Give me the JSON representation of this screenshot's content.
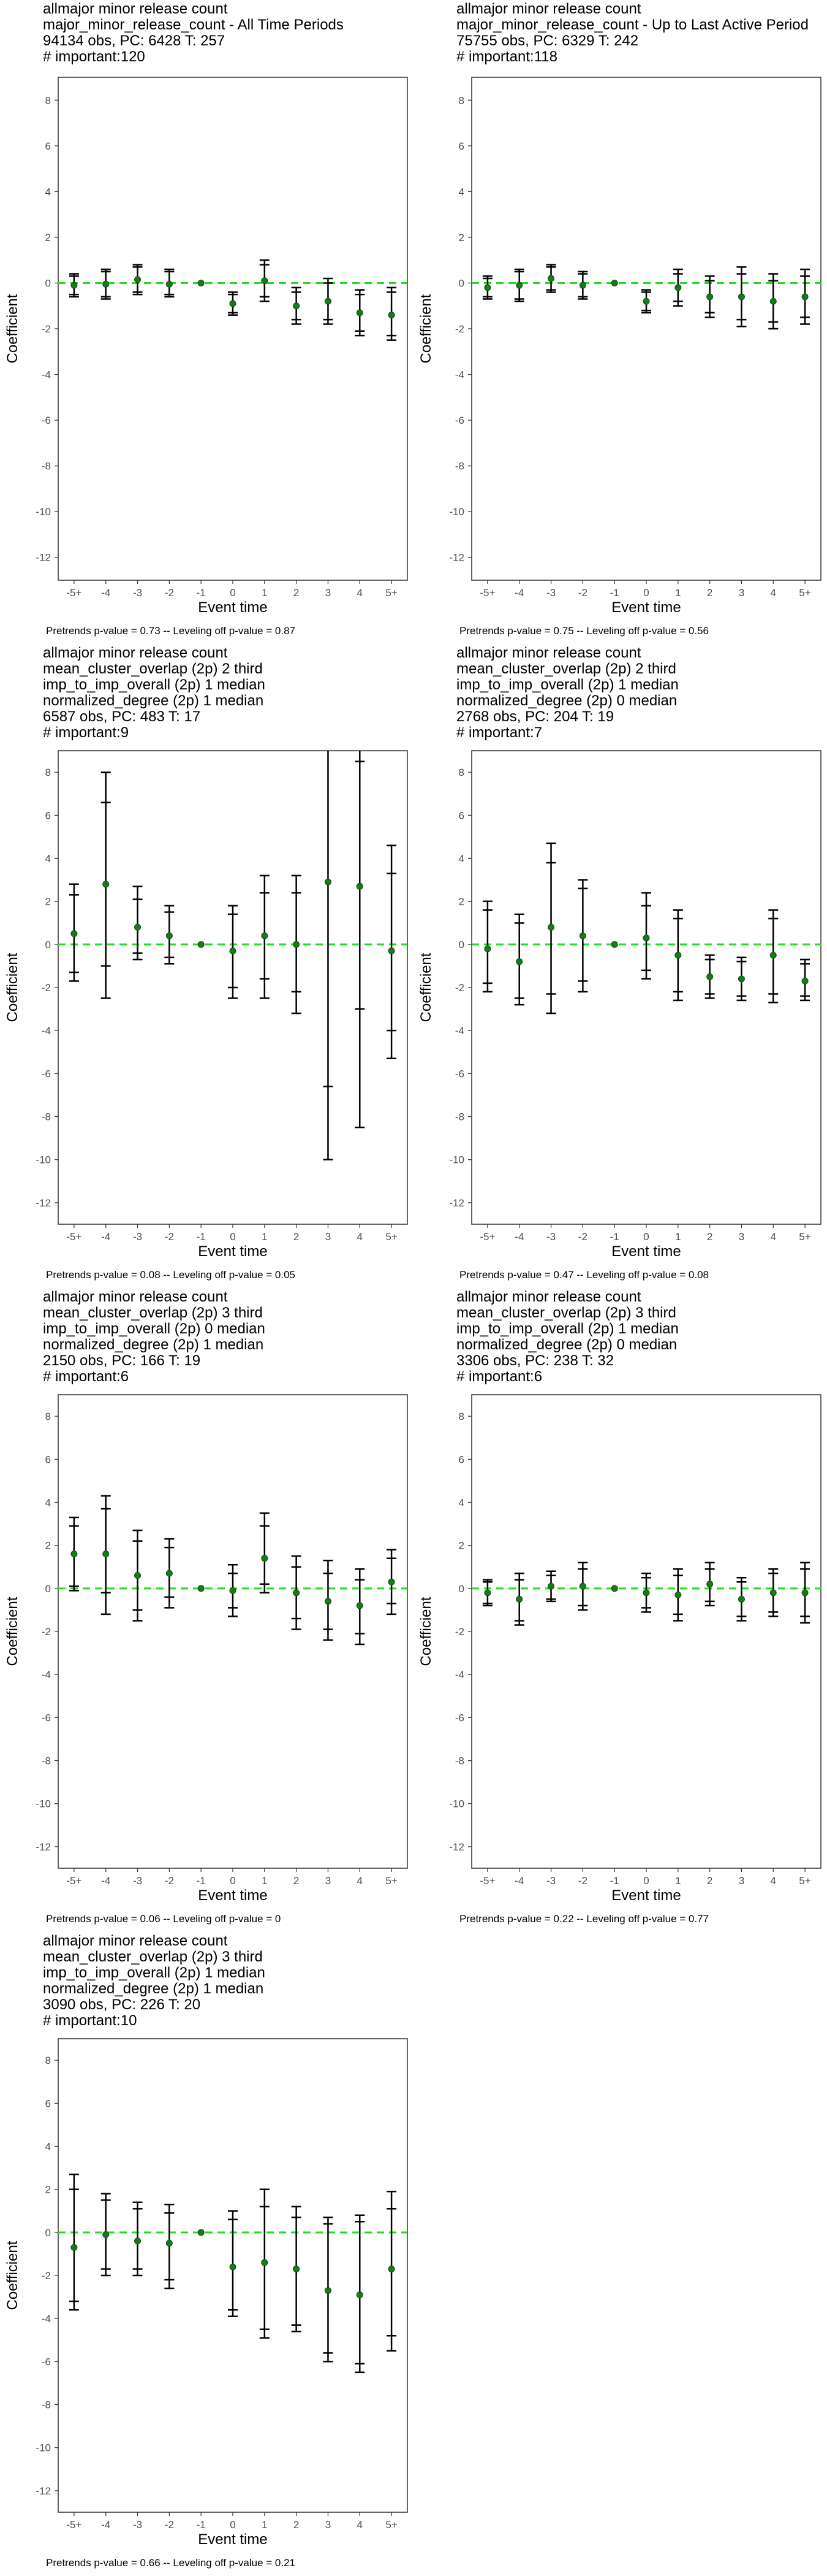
{
  "axis": {
    "xlabel": "Event time",
    "ylabel": "Coefficient",
    "ylim": [
      -13,
      9
    ],
    "yticks": [
      8,
      6,
      4,
      2,
      0,
      -2,
      -4,
      -6,
      -8,
      -10,
      -12
    ],
    "categories": [
      "-5+",
      "-4",
      "-3",
      "-2",
      "-1",
      "0",
      "1",
      "2",
      "3",
      "4",
      "5+"
    ],
    "grid": false,
    "reference_line": {
      "y": 0,
      "color": "#22dd22",
      "style": "dashed"
    }
  },
  "colors": {
    "point": "#1a7a1a",
    "bar": "#000000",
    "ref_line": "#22dd22",
    "panel_border": "#333333"
  },
  "chart_data": [
    {
      "type": "scatter",
      "title_lines": [
        " allmajor minor release count",
        "major_minor_release_count - All Time Periods",
        "94134 obs, PC: 6428 T: 257",
        "# important:120"
      ],
      "footer": "Pretrends p-value = 0.73 -- Leveling off p-value = 0.87",
      "values": [
        -0.1,
        -0.05,
        0.15,
        -0.05,
        0,
        -0.9,
        0.1,
        -1.0,
        -0.8,
        -1.3,
        -1.4
      ],
      "ci95": [
        [
          -0.6,
          0.4
        ],
        [
          -0.7,
          0.6
        ],
        [
          -0.5,
          0.8
        ],
        [
          -0.6,
          0.6
        ],
        [
          0,
          0
        ],
        [
          -1.4,
          -0.4
        ],
        [
          -0.8,
          1.0
        ],
        [
          -1.8,
          -0.2
        ],
        [
          -1.8,
          0.2
        ],
        [
          -2.3,
          -0.3
        ],
        [
          -2.5,
          -0.2
        ]
      ],
      "ci90": [
        [
          -0.5,
          0.3
        ],
        [
          -0.6,
          0.5
        ],
        [
          -0.4,
          0.7
        ],
        [
          -0.5,
          0.5
        ],
        [
          0,
          0
        ],
        [
          -1.3,
          -0.5
        ],
        [
          -0.6,
          0.8
        ],
        [
          -1.6,
          -0.4
        ],
        [
          -1.6,
          0.0
        ],
        [
          -2.1,
          -0.5
        ],
        [
          -2.3,
          -0.4
        ]
      ]
    },
    {
      "type": "scatter",
      "title_lines": [
        " allmajor minor release count",
        "major_minor_release_count - Up to Last Active Period",
        "75755 obs, PC: 6329 T: 242",
        "# important:118"
      ],
      "footer": "Pretrends p-value = 0.75 -- Leveling off p-value = 0.56",
      "values": [
        -0.2,
        -0.1,
        0.2,
        -0.1,
        0,
        -0.8,
        -0.2,
        -0.6,
        -0.6,
        -0.8,
        -0.6
      ],
      "ci95": [
        [
          -0.7,
          0.3
        ],
        [
          -0.8,
          0.6
        ],
        [
          -0.4,
          0.8
        ],
        [
          -0.7,
          0.5
        ],
        [
          0,
          0
        ],
        [
          -1.3,
          -0.3
        ],
        [
          -1.0,
          0.6
        ],
        [
          -1.5,
          0.3
        ],
        [
          -1.9,
          0.7
        ],
        [
          -2.0,
          0.4
        ],
        [
          -1.8,
          0.6
        ]
      ],
      "ci90": [
        [
          -0.6,
          0.2
        ],
        [
          -0.7,
          0.5
        ],
        [
          -0.3,
          0.7
        ],
        [
          -0.6,
          0.4
        ],
        [
          0,
          0
        ],
        [
          -1.2,
          -0.4
        ],
        [
          -0.8,
          0.4
        ],
        [
          -1.3,
          0.1
        ],
        [
          -1.6,
          0.4
        ],
        [
          -1.7,
          0.1
        ],
        [
          -1.5,
          0.3
        ]
      ]
    },
    {
      "type": "scatter",
      "title_lines": [
        " allmajor minor release count",
        "mean_cluster_overlap (2p) 2 third",
        "imp_to_imp_overall (2p) 1 median",
        "normalized_degree (2p) 1 median",
        "6587 obs, PC: 483 T: 17",
        "# important:9"
      ],
      "footer": "Pretrends p-value = 0.08 -- Leveling off p-value = 0.05",
      "values": [
        0.5,
        2.8,
        0.8,
        0.4,
        0,
        -0.3,
        0.4,
        0.0,
        2.9,
        2.7,
        -0.3
      ],
      "ci95": [
        [
          -1.7,
          2.8
        ],
        [
          -2.5,
          8.0
        ],
        [
          -0.7,
          2.7
        ],
        [
          -0.9,
          1.8
        ],
        [
          0,
          0
        ],
        [
          -2.5,
          1.8
        ],
        [
          -2.5,
          3.2
        ],
        [
          -3.2,
          3.2
        ],
        [
          -10.0,
          12.0
        ],
        [
          -8.5,
          13.5
        ],
        [
          -5.3,
          4.6
        ]
      ],
      "ci90": [
        [
          -1.3,
          2.3
        ],
        [
          -1.0,
          6.6
        ],
        [
          -0.4,
          2.1
        ],
        [
          -0.6,
          1.5
        ],
        [
          0,
          0
        ],
        [
          -2.0,
          1.4
        ],
        [
          -1.6,
          2.4
        ],
        [
          -2.2,
          2.4
        ],
        [
          -6.6,
          12.0
        ],
        [
          -3.0,
          8.5
        ],
        [
          -4.0,
          3.3
        ]
      ]
    },
    {
      "type": "scatter",
      "title_lines": [
        " allmajor minor release count",
        "mean_cluster_overlap (2p) 2 third",
        "imp_to_imp_overall (2p) 1 median",
        "normalized_degree (2p) 0 median",
        "2768 obs, PC: 204 T: 19",
        "# important:7"
      ],
      "footer": "Pretrends p-value = 0.47 -- Leveling off p-value = 0.08",
      "values": [
        -0.2,
        -0.8,
        0.8,
        0.4,
        0,
        0.3,
        -0.5,
        -1.5,
        -1.6,
        -0.5,
        -1.7
      ],
      "ci95": [
        [
          -2.2,
          2.0
        ],
        [
          -2.8,
          1.4
        ],
        [
          -3.2,
          4.7
        ],
        [
          -2.2,
          3.0
        ],
        [
          0,
          0
        ],
        [
          -1.6,
          2.4
        ],
        [
          -2.6,
          1.6
        ],
        [
          -2.5,
          -0.5
        ],
        [
          -2.6,
          -0.6
        ],
        [
          -2.7,
          1.6
        ],
        [
          -2.6,
          -0.7
        ]
      ],
      "ci90": [
        [
          -1.8,
          1.6
        ],
        [
          -2.5,
          1.0
        ],
        [
          -2.3,
          3.8
        ],
        [
          -1.7,
          2.6
        ],
        [
          0,
          0
        ],
        [
          -1.2,
          1.8
        ],
        [
          -2.2,
          1.2
        ],
        [
          -2.3,
          -0.7
        ],
        [
          -2.4,
          -0.8
        ],
        [
          -2.3,
          1.2
        ],
        [
          -2.4,
          -0.9
        ]
      ]
    },
    {
      "type": "scatter",
      "title_lines": [
        " allmajor minor release count",
        "mean_cluster_overlap (2p) 3 third",
        "imp_to_imp_overall (2p) 0 median",
        "normalized_degree (2p) 1 median",
        "2150 obs, PC: 166 T: 19",
        "# important:6"
      ],
      "footer": "Pretrends p-value = 0.06 -- Leveling off p-value = 0",
      "values": [
        1.6,
        1.6,
        0.6,
        0.7,
        0,
        -0.1,
        1.4,
        -0.2,
        -0.6,
        -0.8,
        0.3
      ],
      "ci95": [
        [
          -0.1,
          3.3
        ],
        [
          -1.2,
          4.3
        ],
        [
          -1.5,
          2.7
        ],
        [
          -0.9,
          2.3
        ],
        [
          0,
          0
        ],
        [
          -1.3,
          1.1
        ],
        [
          -0.2,
          3.5
        ],
        [
          -1.9,
          1.5
        ],
        [
          -2.4,
          1.3
        ],
        [
          -2.6,
          0.9
        ],
        [
          -1.2,
          1.8
        ]
      ],
      "ci90": [
        [
          0.1,
          2.9
        ],
        [
          -0.2,
          3.7
        ],
        [
          -1.0,
          2.2
        ],
        [
          -0.4,
          1.9
        ],
        [
          0,
          0
        ],
        [
          -0.9,
          0.7
        ],
        [
          0.2,
          2.9
        ],
        [
          -1.4,
          1.0
        ],
        [
          -1.9,
          0.7
        ],
        [
          -2.1,
          0.4
        ],
        [
          -0.7,
          1.4
        ]
      ]
    },
    {
      "type": "scatter",
      "title_lines": [
        " allmajor minor release count",
        "mean_cluster_overlap (2p) 3 third",
        "imp_to_imp_overall (2p) 1 median",
        "normalized_degree (2p) 0 median",
        "3306 obs, PC: 238 T: 32",
        "# important:6"
      ],
      "footer": "Pretrends p-value = 0.22 -- Leveling off p-value = 0.77",
      "values": [
        -0.2,
        -0.5,
        0.1,
        0.1,
        0,
        -0.2,
        -0.3,
        0.2,
        -0.5,
        -0.2,
        -0.2
      ],
      "ci95": [
        [
          -0.8,
          0.4
        ],
        [
          -1.7,
          0.7
        ],
        [
          -0.6,
          0.8
        ],
        [
          -1.0,
          1.2
        ],
        [
          0,
          0
        ],
        [
          -1.1,
          0.7
        ],
        [
          -1.5,
          0.9
        ],
        [
          -0.8,
          1.2
        ],
        [
          -1.5,
          0.5
        ],
        [
          -1.3,
          0.9
        ],
        [
          -1.6,
          1.2
        ]
      ],
      "ci90": [
        [
          -0.7,
          0.3
        ],
        [
          -1.5,
          0.4
        ],
        [
          -0.5,
          0.6
        ],
        [
          -0.8,
          0.9
        ],
        [
          0,
          0
        ],
        [
          -0.9,
          0.5
        ],
        [
          -1.2,
          0.6
        ],
        [
          -0.6,
          0.9
        ],
        [
          -1.3,
          0.3
        ],
        [
          -1.1,
          0.7
        ],
        [
          -1.3,
          0.9
        ]
      ]
    },
    {
      "type": "scatter",
      "title_lines": [
        " allmajor minor release count",
        "mean_cluster_overlap (2p) 3 third",
        "imp_to_imp_overall (2p) 1 median",
        "normalized_degree (2p) 1 median",
        "3090 obs, PC: 226 T: 20",
        "# important:10"
      ],
      "footer": "Pretrends p-value = 0.66 -- Leveling off p-value = 0.21",
      "values": [
        -0.7,
        -0.1,
        -0.4,
        -0.5,
        0,
        -1.6,
        -1.4,
        -1.7,
        -2.7,
        -2.9,
        -1.7
      ],
      "ci95": [
        [
          -3.6,
          2.7
        ],
        [
          -2.0,
          1.8
        ],
        [
          -2.0,
          1.4
        ],
        [
          -2.6,
          1.3
        ],
        [
          0,
          0
        ],
        [
          -3.9,
          1.0
        ],
        [
          -4.9,
          2.0
        ],
        [
          -4.6,
          1.2
        ],
        [
          -6.0,
          0.7
        ],
        [
          -6.5,
          0.8
        ],
        [
          -5.5,
          1.9
        ]
      ],
      "ci90": [
        [
          -3.2,
          2.0
        ],
        [
          -1.7,
          1.5
        ],
        [
          -1.7,
          1.1
        ],
        [
          -2.2,
          0.9
        ],
        [
          0,
          0
        ],
        [
          -3.6,
          0.6
        ],
        [
          -4.5,
          1.2
        ],
        [
          -4.3,
          0.7
        ],
        [
          -5.6,
          0.4
        ],
        [
          -6.1,
          0.5
        ],
        [
          -4.8,
          1.1
        ]
      ]
    }
  ]
}
